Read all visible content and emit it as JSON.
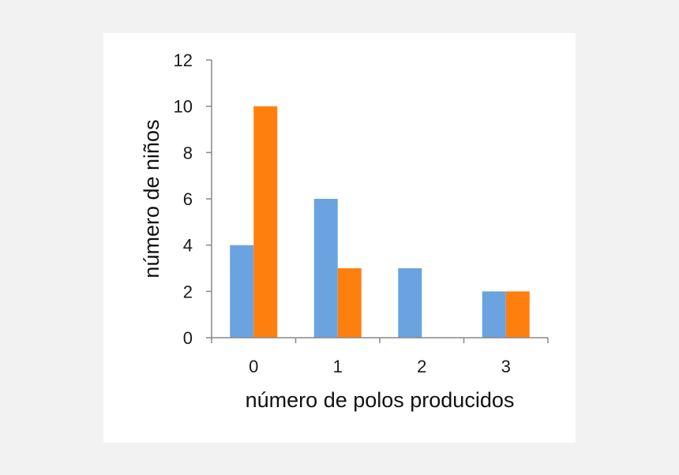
{
  "chart_data": {
    "type": "bar",
    "title": "",
    "xlabel": "número de polos producidos",
    "ylabel": "número de niños",
    "categories": [
      "0",
      "1",
      "2",
      "3"
    ],
    "series": [
      {
        "values": [
          4,
          6,
          3,
          2
        ]
      },
      {
        "values": [
          10,
          3,
          0,
          2
        ]
      }
    ],
    "ylim": [
      0,
      12
    ],
    "yticks": [
      "0",
      "2",
      "4",
      "6",
      "8",
      "10",
      "12"
    ],
    "grid": false,
    "legend": "none",
    "colors": [
      "#6aa3e0",
      "#ff7f0e"
    ]
  }
}
